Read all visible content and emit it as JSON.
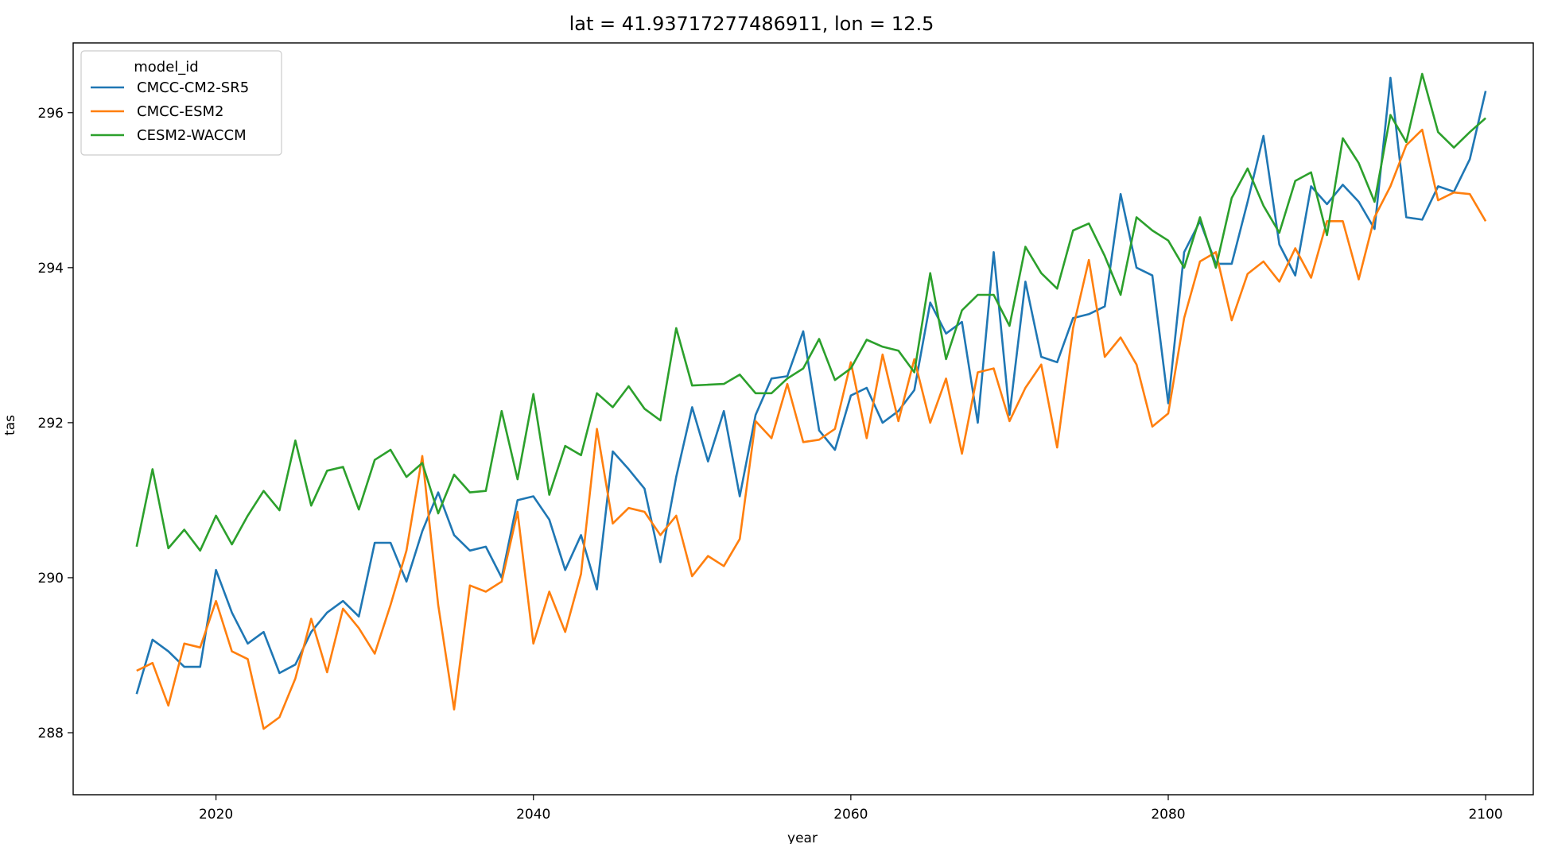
{
  "chart_data": {
    "type": "line",
    "title": "lat = 41.93717277486911, lon = 12.5",
    "xlabel": "year",
    "ylabel": "tas",
    "xlim": [
      2011,
      2103
    ],
    "ylim": [
      287.2,
      296.9
    ],
    "xticks": [
      2020,
      2040,
      2060,
      2080,
      2100
    ],
    "yticks": [
      288,
      290,
      292,
      294,
      296
    ],
    "grid": false,
    "legend": {
      "title": "model_id",
      "placement": "top-left"
    },
    "x_start": 2015,
    "series": [
      {
        "name": "CMCC-CM2-SR5",
        "color": "#1f77b4",
        "values": [
          288.5,
          289.2,
          289.05,
          288.85,
          288.85,
          290.1,
          289.55,
          289.15,
          289.3,
          288.77,
          288.88,
          289.3,
          289.55,
          289.7,
          289.5,
          290.45,
          290.45,
          289.95,
          290.6,
          291.1,
          290.55,
          290.35,
          290.4,
          290.0,
          291.0,
          291.05,
          290.75,
          290.1,
          290.55,
          289.85,
          291.63,
          291.4,
          291.15,
          290.2,
          291.3,
          292.2,
          291.5,
          292.15,
          291.05,
          292.1,
          292.57,
          292.6,
          293.18,
          291.9,
          291.65,
          292.35,
          292.45,
          292.0,
          292.15,
          292.42,
          293.55,
          293.15,
          293.3,
          292.0,
          294.2,
          292.1,
          293.82,
          292.85,
          292.78,
          293.35,
          293.4,
          293.5,
          294.95,
          294.0,
          293.9,
          292.25,
          294.2,
          294.6,
          294.05,
          294.05,
          294.85,
          295.7,
          294.3,
          293.9,
          295.05,
          294.82,
          295.07,
          294.85,
          294.5,
          296.45,
          294.65,
          294.62,
          295.05,
          294.98,
          295.4,
          296.28
        ]
      },
      {
        "name": "CMCC-ESM2",
        "color": "#ff7f0e",
        "values": [
          288.8,
          288.9,
          288.35,
          289.15,
          289.1,
          289.7,
          289.05,
          288.95,
          288.05,
          288.2,
          288.7,
          289.47,
          288.78,
          289.6,
          289.35,
          289.02,
          289.65,
          290.35,
          291.57,
          289.65,
          288.3,
          289.9,
          289.82,
          289.95,
          290.85,
          289.15,
          289.82,
          289.3,
          290.05,
          291.92,
          290.7,
          290.9,
          290.85,
          290.55,
          290.8,
          290.02,
          290.28,
          290.15,
          290.5,
          292.02,
          291.8,
          292.5,
          291.75,
          291.78,
          291.92,
          292.78,
          291.8,
          292.88,
          292.02,
          292.82,
          292.0,
          292.57,
          291.6,
          292.65,
          292.7,
          292.02,
          292.45,
          292.75,
          291.68,
          293.22,
          294.1,
          292.85,
          293.1,
          292.75,
          291.95,
          292.12,
          293.35,
          294.08,
          294.2,
          293.32,
          293.92,
          294.08,
          293.82,
          294.25,
          293.87,
          294.6,
          294.6,
          293.85,
          294.65,
          295.05,
          295.58,
          295.78,
          294.87,
          294.97,
          294.95,
          294.6
        ]
      },
      {
        "name": "CESM2-WACCM",
        "color": "#2ca02c",
        "values": [
          290.4,
          291.4,
          290.38,
          290.62,
          290.35,
          290.8,
          290.43,
          290.8,
          291.12,
          290.87,
          291.77,
          290.93,
          291.38,
          291.43,
          290.88,
          291.52,
          291.65,
          291.3,
          291.48,
          290.83,
          291.33,
          291.1,
          291.12,
          292.15,
          291.27,
          292.37,
          291.07,
          291.7,
          291.58,
          292.38,
          292.2,
          292.47,
          292.18,
          292.03,
          293.22,
          292.48,
          292.49,
          292.5,
          292.62,
          292.38,
          292.38,
          292.57,
          292.7,
          293.08,
          292.55,
          292.7,
          293.07,
          292.98,
          292.93,
          292.65,
          293.93,
          292.82,
          293.45,
          293.65,
          293.65,
          293.25,
          294.27,
          293.93,
          293.73,
          294.48,
          294.57,
          294.15,
          293.65,
          294.65,
          294.48,
          294.35,
          294.0,
          294.65,
          294.0,
          294.9,
          295.28,
          294.8,
          294.45,
          295.12,
          295.23,
          294.42,
          295.67,
          295.35,
          294.85,
          295.97,
          295.62,
          296.5,
          295.75,
          295.55,
          295.75,
          295.93
        ]
      }
    ]
  }
}
